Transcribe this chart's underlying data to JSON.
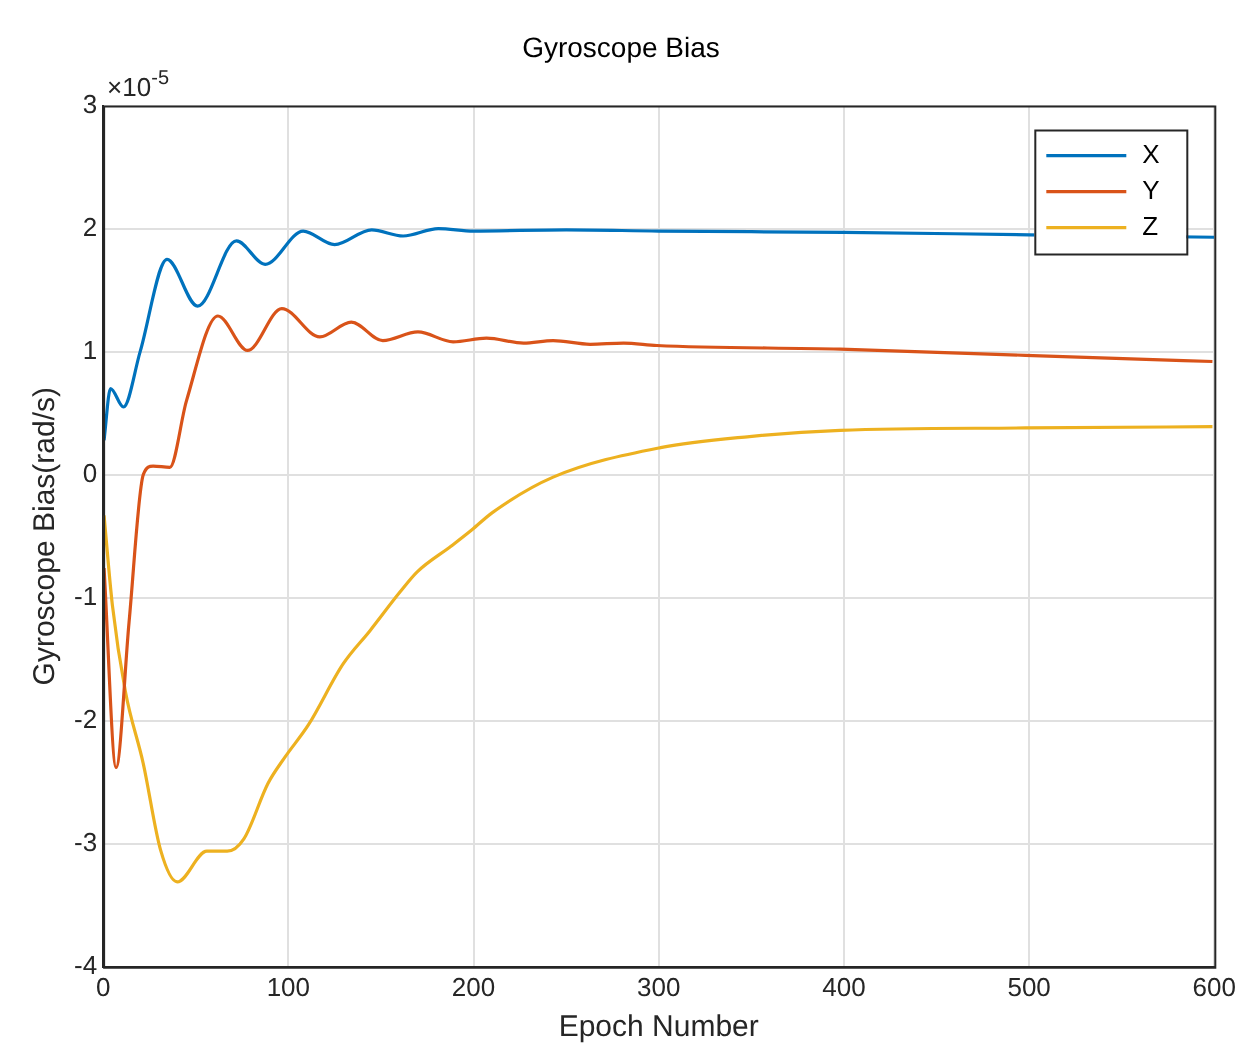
{
  "chart_data": {
    "type": "line",
    "title": "Gyroscope Bias",
    "xlabel": "Epoch Number",
    "ylabel": "Gyroscope Bias(rad/s)",
    "annotations": [
      "×10$^{-5}$"
    ],
    "xlim": [
      0,
      600
    ],
    "xticks": [
      0,
      100,
      200,
      300,
      400,
      500,
      600
    ],
    "ylim": [
      -4,
      3
    ],
    "yticks": [
      -4,
      -3,
      -2,
      -1,
      0,
      1,
      2,
      3
    ],
    "grid": true,
    "legend": "top right",
    "marker": "none",
    "line_style": "solid",
    "series": [
      {
        "name": "X",
        "color": "#0072bd",
        "x": [
          0.5,
          4,
          11,
          20,
          34.5,
          51,
          72,
          87.5,
          108,
          125,
          145,
          162,
          181,
          200,
          250,
          300,
          400,
          500,
          600
        ],
        "values": [
          0.28,
          0.7,
          0.55,
          1.0,
          1.75,
          1.37,
          1.9,
          1.71,
          1.98,
          1.87,
          1.99,
          1.94,
          2.0,
          1.98,
          1.99,
          1.98,
          1.97,
          1.95,
          1.93
        ]
      },
      {
        "name": "Y",
        "color": "#d95319",
        "x": [
          0.5,
          7,
          14,
          21.7,
          27,
          36,
          45,
          62,
          78,
          96.5,
          117,
          134,
          151,
          170,
          189,
          207,
          227,
          243,
          263,
          281,
          299,
          398,
          498,
          599
        ],
        "values": [
          -0.76,
          -2.38,
          -1.2,
          0,
          0.07,
          0.06,
          0.6,
          1.29,
          1.01,
          1.35,
          1.12,
          1.24,
          1.09,
          1.16,
          1.08,
          1.11,
          1.07,
          1.09,
          1.06,
          1.07,
          1.05,
          1.02,
          0.97,
          0.92
        ]
      },
      {
        "name": "Z",
        "color": "#edb120",
        "x": [
          0.5,
          5,
          12,
          21.7,
          31,
          40,
          56,
          67,
          76,
          89,
          98,
          111,
          129.5,
          144,
          160.5,
          169.6,
          188,
          199,
          210,
          243,
          301,
          349,
          398,
          498,
          599
        ],
        "values": [
          -0.33,
          -1.06,
          -1.76,
          -2.35,
          -3.05,
          -3.31,
          -3.06,
          -3.06,
          -2.96,
          -2.51,
          -2.3,
          -2.03,
          -1.54,
          -1.27,
          -0.95,
          -0.79,
          -0.58,
          -0.45,
          -0.31,
          -0.02,
          0.22,
          0.31,
          0.36,
          0.38,
          0.39
        ]
      }
    ]
  }
}
